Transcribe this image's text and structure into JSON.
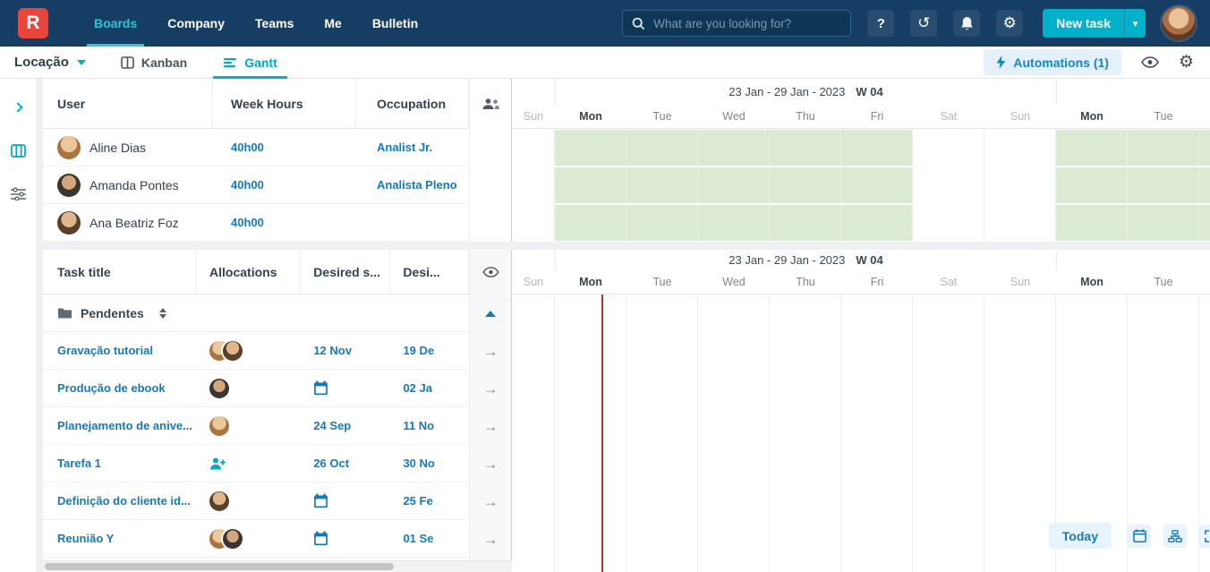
{
  "brand": {
    "logo_letter": "R"
  },
  "navbar": {
    "items": [
      {
        "label": "Boards"
      },
      {
        "label": "Company"
      },
      {
        "label": "Teams"
      },
      {
        "label": "Me"
      },
      {
        "label": "Bulletin"
      }
    ],
    "search_placeholder": "What are you looking for?",
    "new_task_label": "New task"
  },
  "toolbar": {
    "board_name": "Locação",
    "kanban_label": "Kanban",
    "gantt_label": "Gantt",
    "automations_label": "Automations (1)"
  },
  "users_table": {
    "header_user": "User",
    "header_week_hours": "Week Hours",
    "header_occupation": "Occupation",
    "rows": [
      {
        "name": "Aline Dias",
        "week_hours": "40h00",
        "occupation": "Analist Jr."
      },
      {
        "name": "Amanda Pontes",
        "week_hours": "40h00",
        "occupation": "Analista Pleno"
      },
      {
        "name": "Ana Beatriz Foz",
        "week_hours": "40h00",
        "occupation": ""
      }
    ]
  },
  "tasks_table": {
    "header_title": "Task title",
    "header_allocations": "Allocations",
    "header_desired_start": "Desired s...",
    "header_desired_end": "Desi...",
    "group_label": "Pendentes",
    "rows": [
      {
        "title": "Gravação tutorial",
        "start": "12 Nov",
        "end": "19 De"
      },
      {
        "title": "Produção de ebook",
        "start": "",
        "end": "02 Ja"
      },
      {
        "title": "Planejamento de anive...",
        "start": "24 Sep",
        "end": "11 No"
      },
      {
        "title": "Tarefa 1",
        "start": "26 Oct",
        "end": "30 No"
      },
      {
        "title": "Definição do cliente id...",
        "start": "",
        "end": "25 Fe"
      },
      {
        "title": "Reunião Y",
        "start": "",
        "end": "01 Se"
      }
    ]
  },
  "gantt": {
    "week_label": "23 Jan - 29 Jan - 2023",
    "week_number": "W 04",
    "days": [
      "Sun",
      "Mon",
      "Tue",
      "Wed",
      "Thu",
      "Fri",
      "Sat",
      "Sun",
      "Mon",
      "Tue",
      ""
    ],
    "availability": [
      [
        0,
        1,
        1,
        1,
        1,
        1,
        0,
        0,
        1,
        1,
        1
      ],
      [
        0,
        1,
        1,
        1,
        1,
        1,
        0,
        0,
        1,
        1,
        1
      ],
      [
        0,
        1,
        1,
        1,
        1,
        1,
        0,
        0,
        1,
        1,
        1
      ]
    ],
    "today_label": "Today"
  },
  "colors": {
    "navbar_bg": "#163e64",
    "accent_teal": "#00b1c9",
    "logo_red": "#e8453c",
    "link_blue": "#1779b8",
    "availability_green": "#dcead4",
    "timeline_marker_red": "#b23527"
  }
}
